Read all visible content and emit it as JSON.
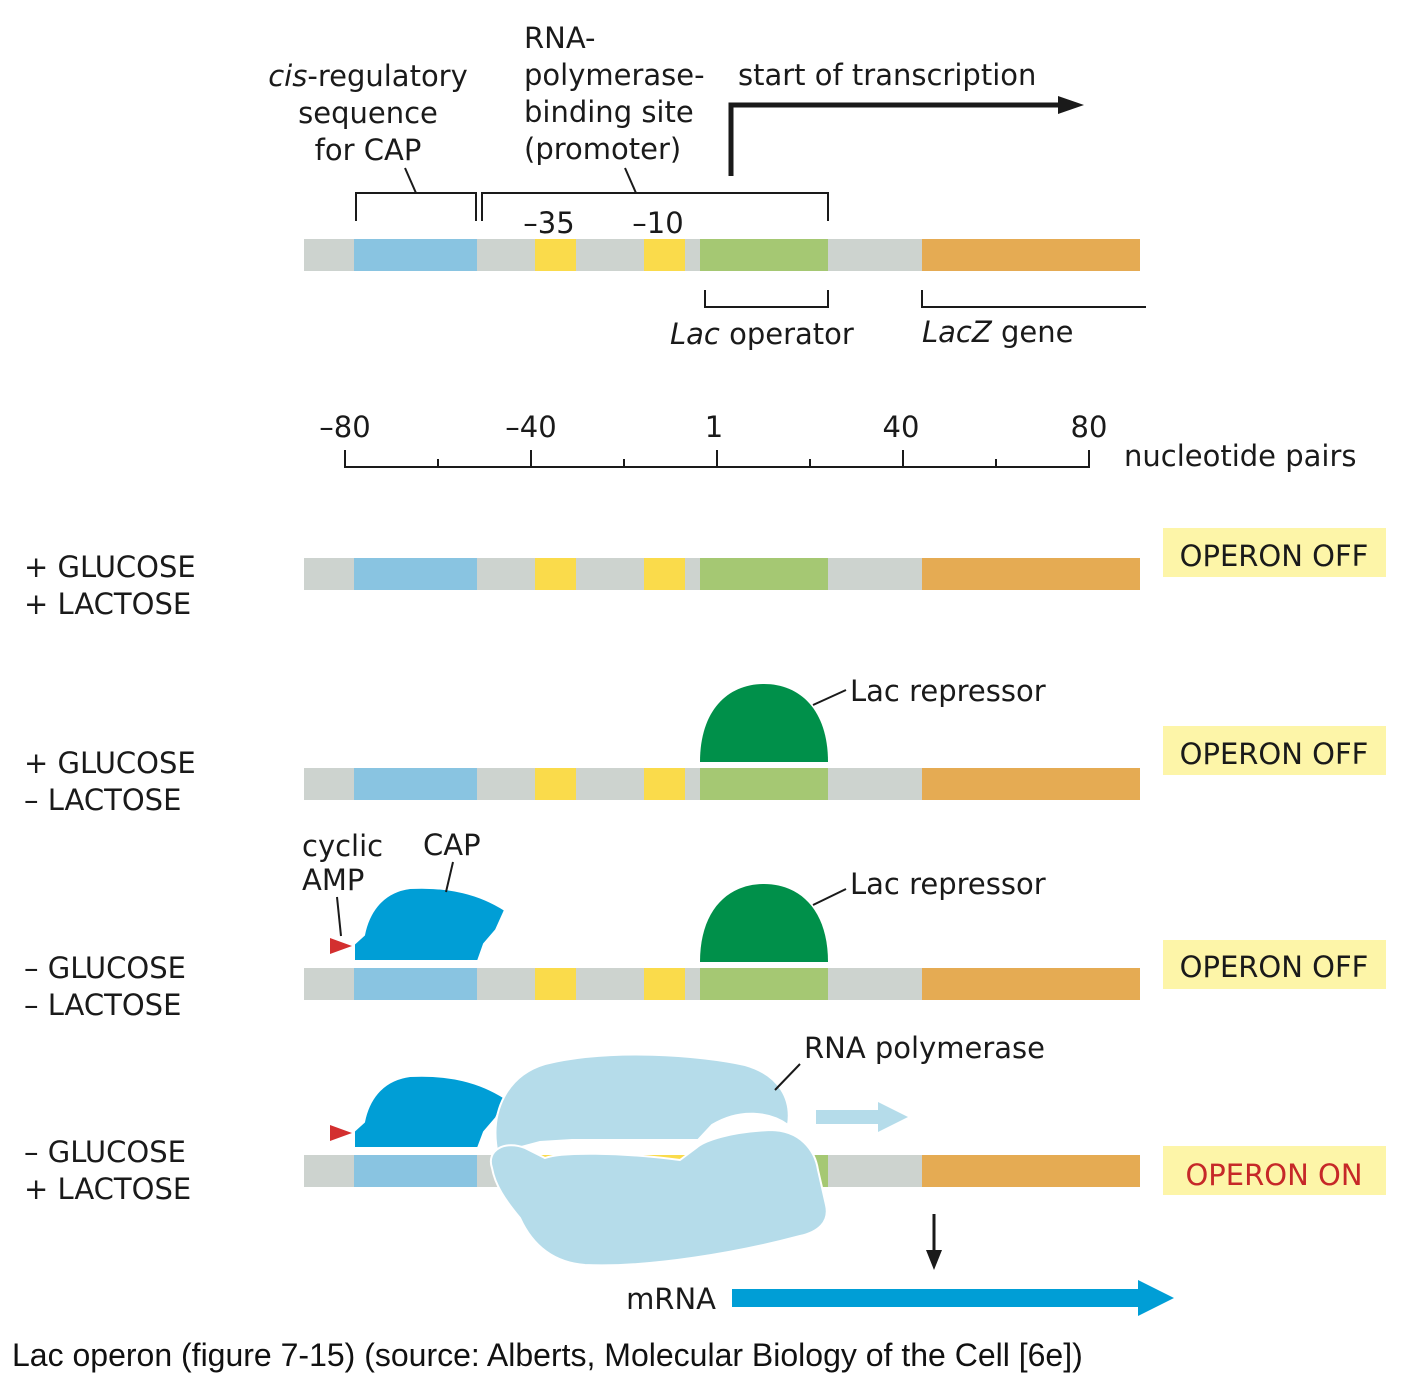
{
  "colors": {
    "dna_gray": "#cdd3cf",
    "cap_site": "#89c4e1",
    "box_yellow": "#fadb4b",
    "operator_green": "#a5c873",
    "lacz_orange": "#e5ab53",
    "repressor_green": "#00904a",
    "cap_protein": "#009ed6",
    "camp_red": "#d32f2f",
    "rna_pol": "#b5dcea",
    "mrna_blue": "#009ed6",
    "status_bg": "#fdf5a8",
    "operon_on_text": "#c62828"
  },
  "top": {
    "cis_label": [
      "cis",
      "-regulatory",
      "sequence",
      "for CAP"
    ],
    "promoter_label": [
      "RNA-",
      "polymerase-",
      "binding site",
      "(promoter)"
    ],
    "start_label": "start of transcription",
    "minus35": "–35",
    "minus10": "–10",
    "operator_label": [
      "Lac",
      " operator"
    ],
    "lacz_label": [
      "LacZ",
      "  gene"
    ]
  },
  "scale": {
    "ticks": [
      "–80",
      "–40",
      "1",
      "40",
      "80"
    ],
    "unit": "nucleotide pairs"
  },
  "rows": [
    {
      "line1": "+ GLUCOSE",
      "line2": "+ LACTOSE",
      "status": "OPERON OFF"
    },
    {
      "line1": "+ GLUCOSE",
      "line2": "– LACTOSE",
      "status": "OPERON OFF"
    },
    {
      "line1": "– GLUCOSE",
      "line2": "– LACTOSE",
      "status": "OPERON OFF"
    },
    {
      "line1": "– GLUCOSE",
      "line2": "+ LACTOSE",
      "status": "OPERON ON"
    }
  ],
  "annotations": {
    "lac_repressor": "Lac repressor",
    "cyclic_amp": [
      "cyclic",
      "AMP"
    ],
    "cap": "CAP",
    "rna_polymerase": "RNA polymerase",
    "mrna": "mRNA"
  },
  "caption": "Lac operon (figure 7-15) (source: Alberts, Molecular Biology of the Cell [6e])"
}
